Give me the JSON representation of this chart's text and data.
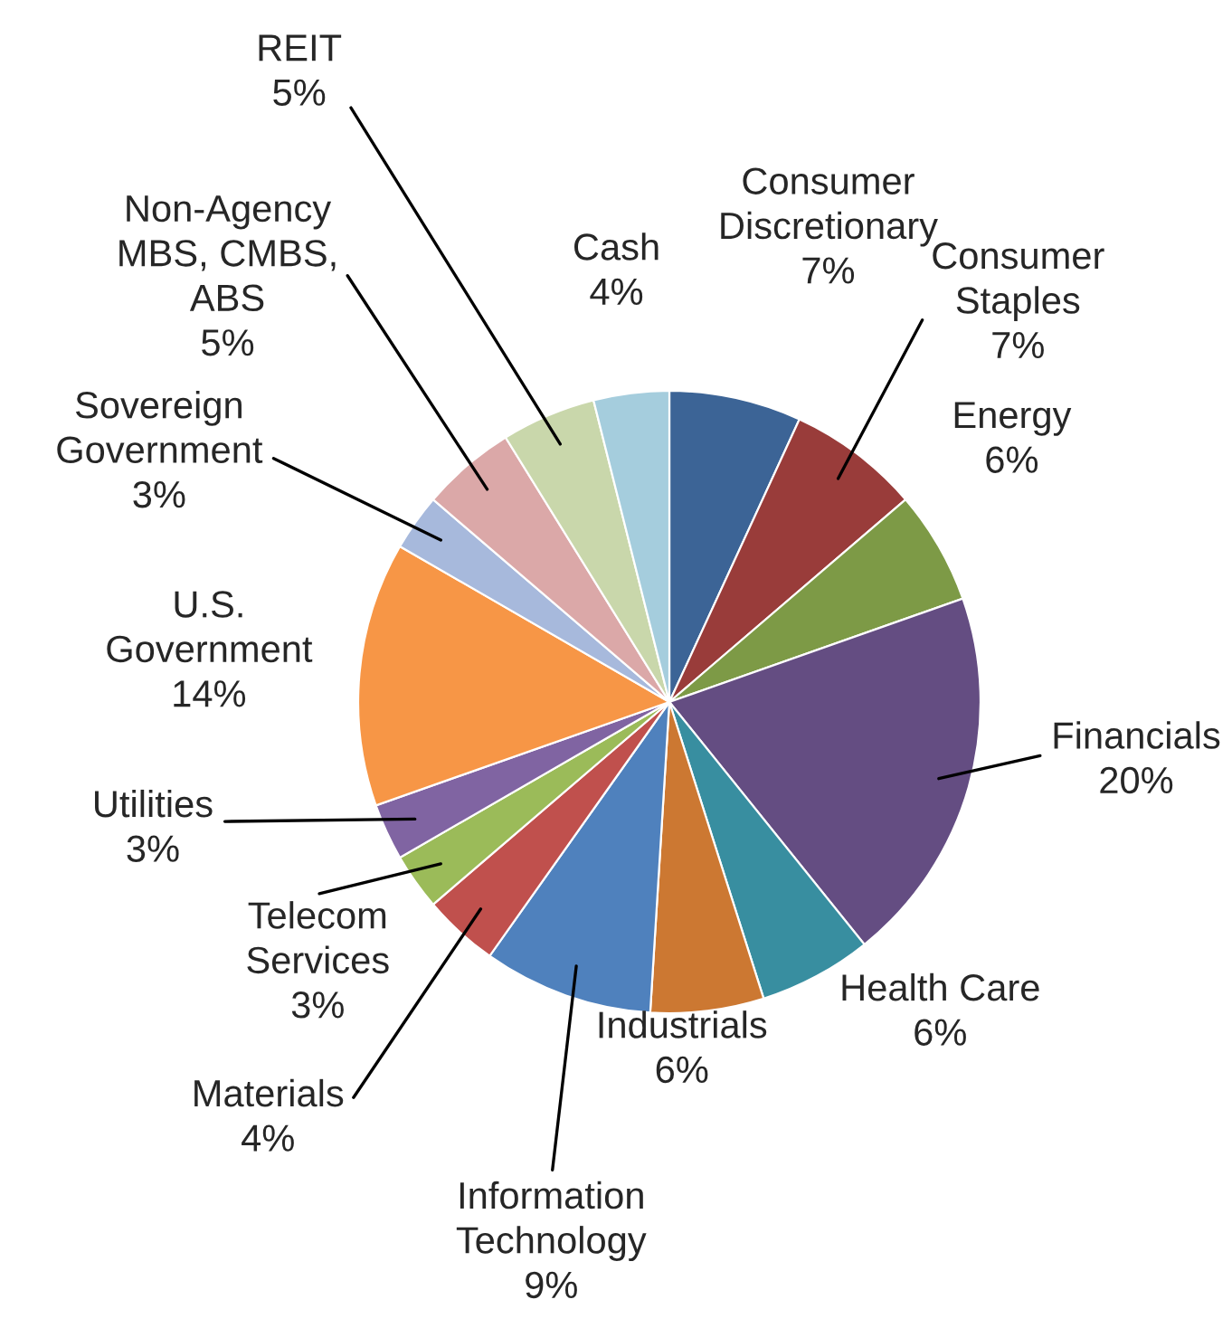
{
  "chart_data": {
    "type": "pie",
    "categories": [
      "Consumer\nDiscretionary",
      "Consumer\nStaples",
      "Energy",
      "Financials",
      "Health Care",
      "Industrials",
      "Information\nTechnology",
      "Materials",
      "Telecom\nServices",
      "Utilities",
      "U.S.\nGovernment",
      "Sovereign\nGovernment",
      "Non-Agency\nMBS, CMBS,\nABS",
      "REIT",
      "Cash"
    ],
    "values": [
      7,
      7,
      6,
      20,
      6,
      6,
      9,
      4,
      3,
      3,
      14,
      3,
      5,
      5,
      4
    ],
    "value_labels": [
      "7%",
      "7%",
      "6%",
      "20%",
      "6%",
      "6%",
      "9%",
      "4%",
      "3%",
      "3%",
      "14%",
      "3%",
      "5%",
      "5%",
      "4%"
    ],
    "colors": [
      "#3c6496",
      "#993c3a",
      "#7d9a46",
      "#644d82",
      "#388ea0",
      "#cc7832",
      "#4f81bd",
      "#c0504d",
      "#9bbb59",
      "#8064a2",
      "#f79646",
      "#a7b9dc",
      "#dba8a8",
      "#c9d7ab",
      "#a5cddd"
    ],
    "legend": false
  }
}
